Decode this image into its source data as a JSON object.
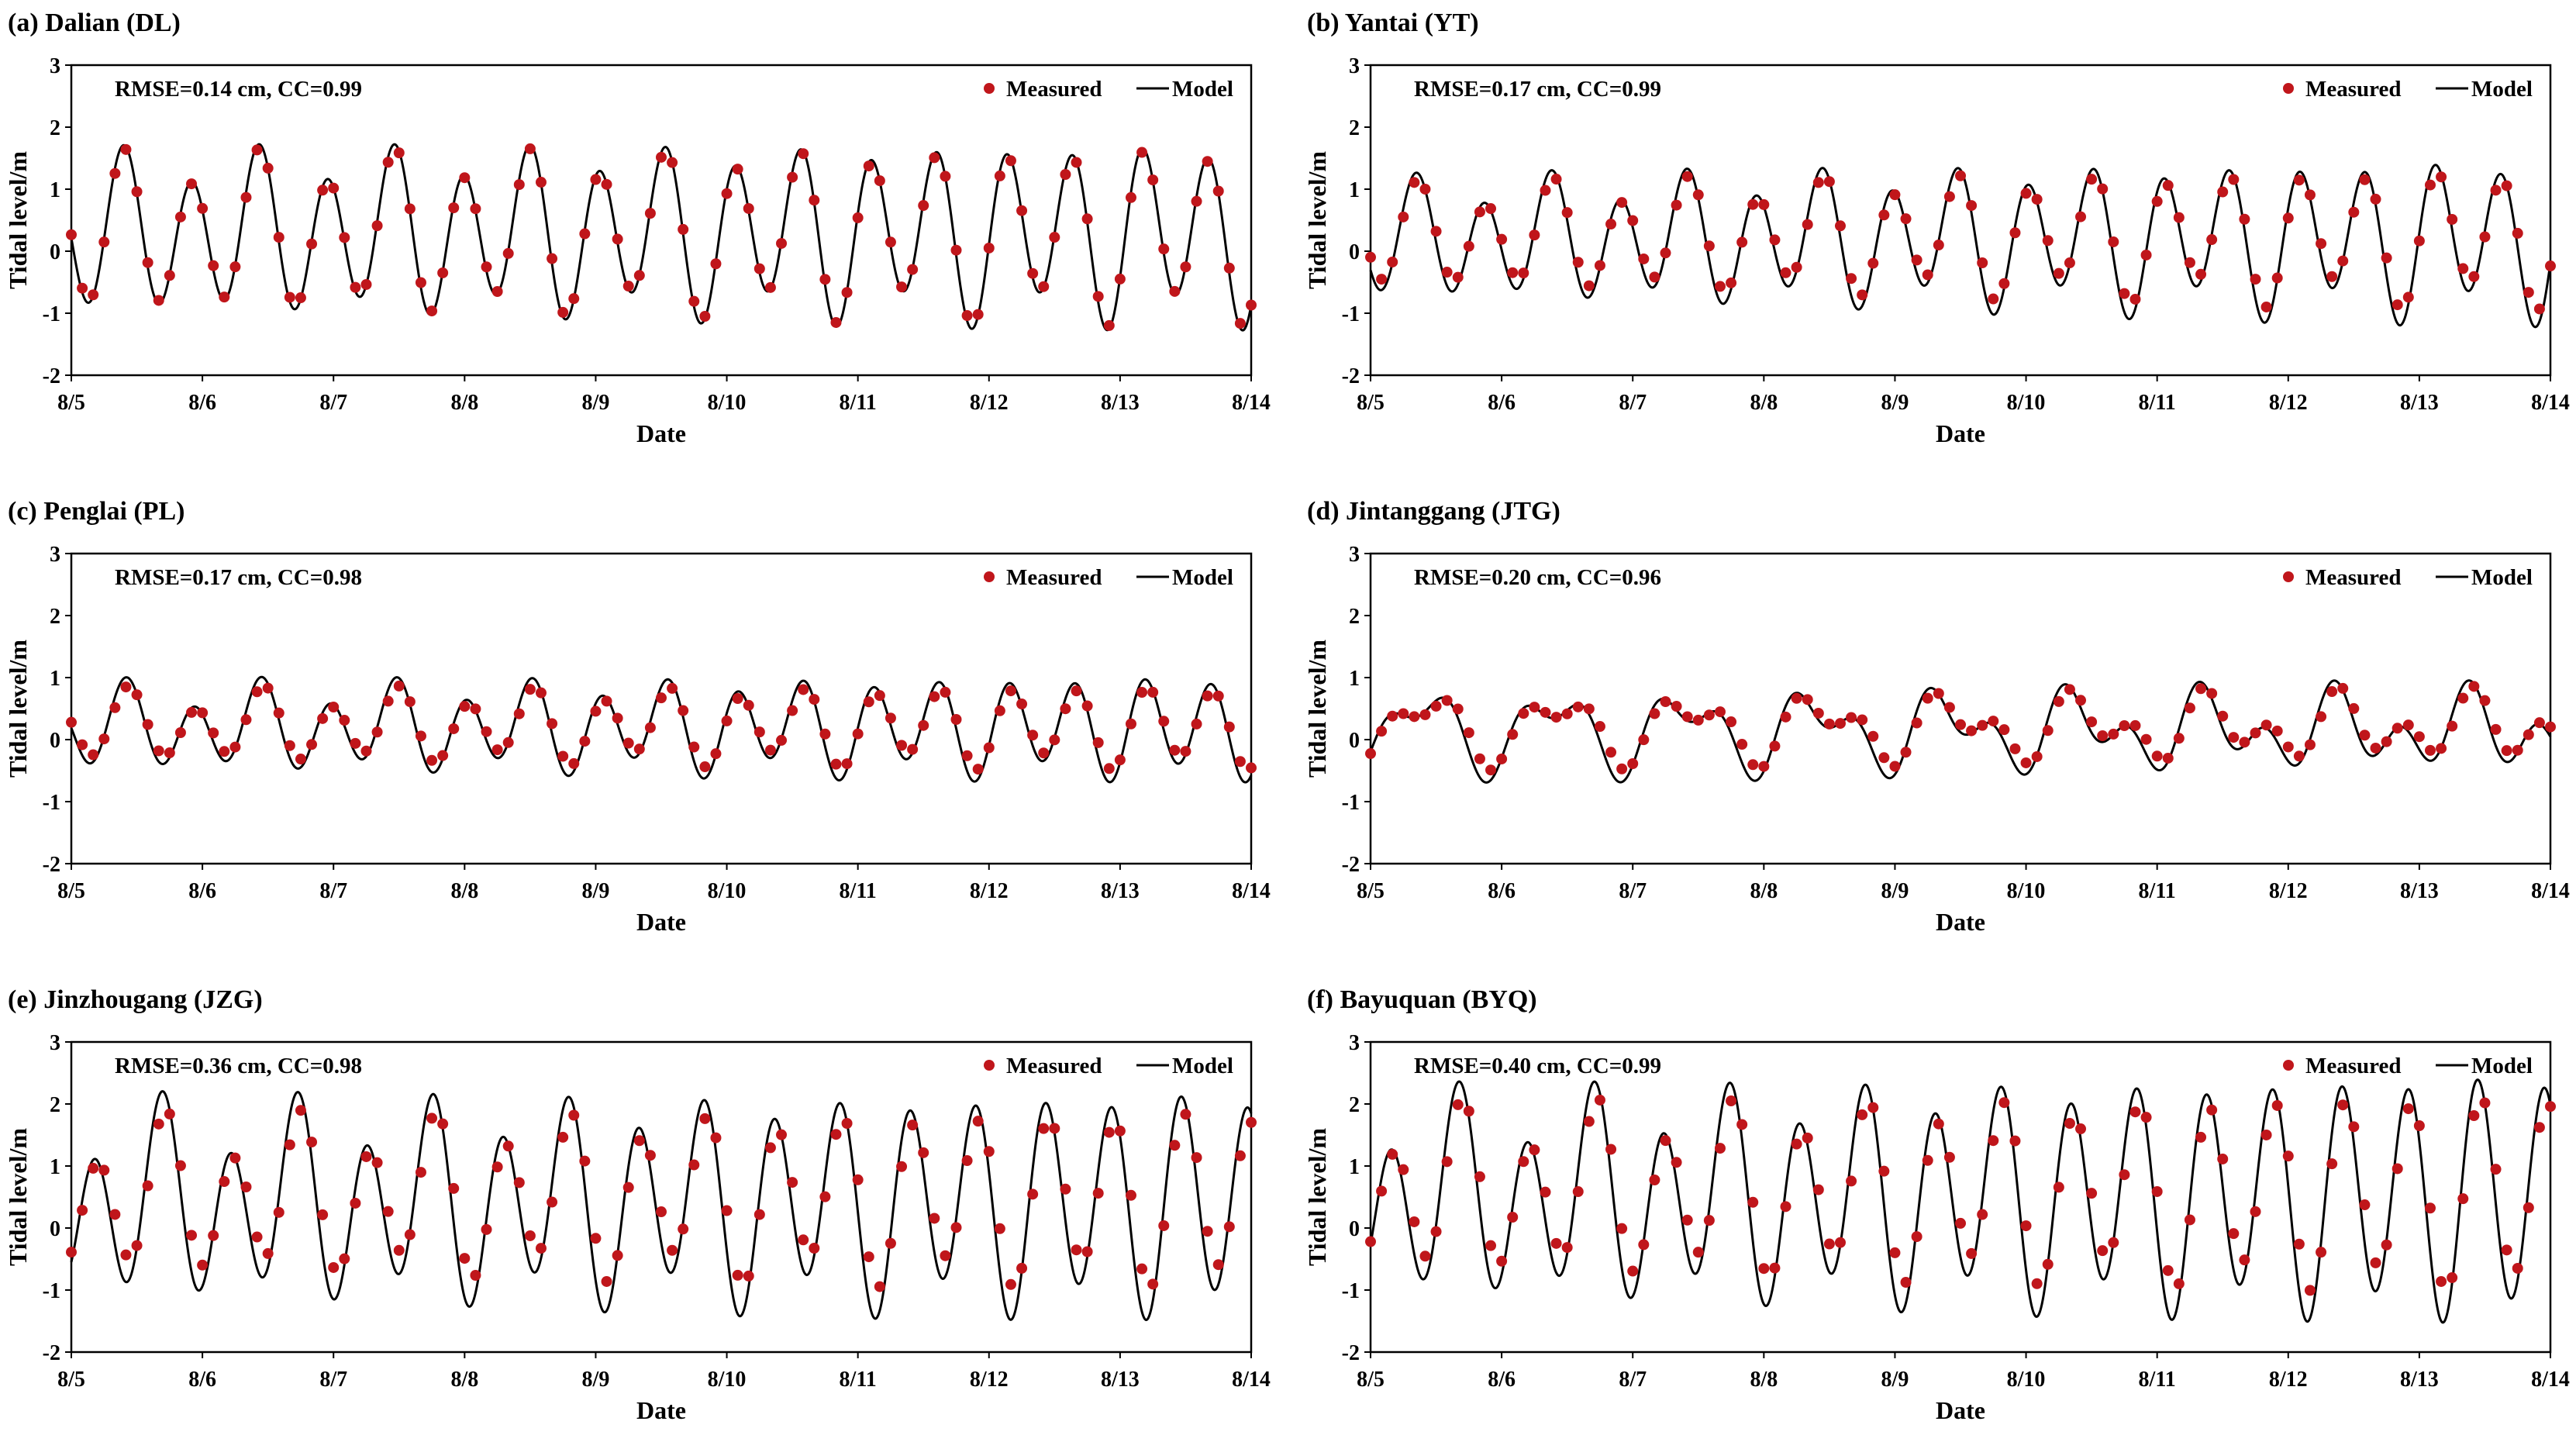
{
  "figure": {
    "colors": {
      "measured": "#c0161b",
      "model": "#000000",
      "axis": "#000000"
    }
  },
  "chart_data": [
    {
      "type": "line",
      "title": "(a) Dalian (DL)",
      "stats": "RMSE=0.14 cm, CC=0.99",
      "xlabel": "Date",
      "ylabel": "Tidal level/m",
      "ylim": [
        -2,
        3
      ],
      "yticks": [
        "-2",
        "-1",
        "0",
        "1",
        "2",
        "3"
      ],
      "xticks": [
        "8/5",
        "8/6",
        "8/7",
        "8/8",
        "8/9",
        "8/10",
        "8/11",
        "8/12",
        "8/13",
        "8/14"
      ],
      "xlim_days": [
        0,
        9
      ],
      "legend": {
        "position": "top-right",
        "measured": "Measured",
        "model": "Model"
      },
      "model": {
        "mean": 0.3,
        "m2_start": 1.1,
        "m2_end": 1.3,
        "k1_start": 0.3,
        "k1_end": 0.3,
        "phase_days": 0.4,
        "k1_phase_days": 0.4
      },
      "measured": {
        "scale": 0.96,
        "offset": 0.0,
        "lag_hours": 0.1,
        "interval_hours": 2
      }
    },
    {
      "type": "line",
      "title": "(b) Yantai (YT)",
      "stats": "RMSE=0.17 cm, CC=0.99",
      "xlabel": "Date",
      "ylabel": "Tidal level/m",
      "ylim": [
        -2,
        3
      ],
      "yticks": [
        "-2",
        "-1",
        "0",
        "1",
        "2",
        "3"
      ],
      "xticks": [
        "8/5",
        "8/6",
        "8/7",
        "8/8",
        "8/9",
        "8/10",
        "8/11",
        "8/12",
        "8/13",
        "8/14"
      ],
      "xlim_days": [
        0,
        9
      ],
      "legend": {
        "position": "top-right",
        "measured": "Measured",
        "model": "Model"
      },
      "model": {
        "mean": 0.2,
        "m2_start": 0.8,
        "m2_end": 1.15,
        "k1_start": 0.25,
        "k1_end": 0.3,
        "phase_days": 0.35,
        "k1_phase_days": 0.35
      },
      "measured": {
        "scale": 0.85,
        "offset": 0.05,
        "lag_hours": 0.3,
        "interval_hours": 2
      }
    },
    {
      "type": "line",
      "title": "(c) Penglai (PL)",
      "stats": "RMSE=0.17 cm, CC=0.98",
      "xlabel": "Date",
      "ylabel": "Tidal level/m",
      "ylim": [
        -2,
        3
      ],
      "yticks": [
        "-2",
        "-1",
        "0",
        "1",
        "2",
        "3"
      ],
      "xticks": [
        "8/5",
        "8/6",
        "8/7",
        "8/8",
        "8/9",
        "8/10",
        "8/11",
        "8/12",
        "8/13",
        "8/14"
      ],
      "xlim_days": [
        0,
        9
      ],
      "legend": {
        "position": "top-right",
        "measured": "Measured",
        "model": "Model"
      },
      "model": {
        "mean": 0.2,
        "m2_start": 0.55,
        "m2_end": 0.75,
        "k1_start": 0.25,
        "k1_end": 0.15,
        "phase_days": 0.42,
        "k1_phase_days": 0.42
      },
      "measured": {
        "scale": 0.8,
        "offset": 0.02,
        "lag_hours": 0.4,
        "interval_hours": 2
      }
    },
    {
      "type": "line",
      "title": "(d) Jintanggang (JTG)",
      "stats": "RMSE=0.20 cm, CC=0.96",
      "xlabel": "Date",
      "ylabel": "Tidal level/m",
      "ylim": [
        -2,
        3
      ],
      "yticks": [
        "-2",
        "-1",
        "0",
        "1",
        "2",
        "3"
      ],
      "xticks": [
        "8/5",
        "8/6",
        "8/7",
        "8/8",
        "8/9",
        "8/10",
        "8/11",
        "8/12",
        "8/13",
        "8/14"
      ],
      "xlim_days": [
        0,
        9
      ],
      "legend": {
        "position": "top-right",
        "measured": "Measured",
        "model": "Model"
      },
      "model": {
        "mean": 0.15,
        "m2_start": 0.3,
        "m2_end": 0.45,
        "k1_start": 0.55,
        "k1_end": 0.35,
        "phase_days": 0.1,
        "k1_phase_days": 0.4
      },
      "measured": {
        "scale": 0.82,
        "offset": 0.05,
        "lag_hours": 0.8,
        "interval_hours": 2
      }
    },
    {
      "type": "line",
      "title": "(e) Jinzhougang (JZG)",
      "stats": "RMSE=0.36 cm, CC=0.98",
      "xlabel": "Date",
      "ylabel": "Tidal level/m",
      "ylim": [
        -2,
        3
      ],
      "yticks": [
        "-2",
        "-1",
        "0",
        "1",
        "2",
        "3"
      ],
      "xticks": [
        "8/5",
        "8/6",
        "8/7",
        "8/8",
        "8/9",
        "8/10",
        "8/11",
        "8/12",
        "8/13",
        "8/14"
      ],
      "xlim_days": [
        0,
        9
      ],
      "legend": {
        "position": "top-right",
        "measured": "Measured",
        "model": "Model"
      },
      "model": {
        "mean": 0.4,
        "m2_start": 1.25,
        "m2_end": 1.65,
        "k1_start": 0.55,
        "k1_end": 0.25,
        "phase_days": 0.18,
        "k1_phase_days": 0.68
      },
      "measured": {
        "scale": 0.78,
        "offset": 0.1,
        "lag_hours": 0.6,
        "interval_hours": 2
      }
    },
    {
      "type": "line",
      "title": "(f) Bayuquan (BYQ)",
      "stats": "RMSE=0.40 cm, CC=0.99",
      "xlabel": "Date",
      "ylabel": "Tidal level/m",
      "ylim": [
        -2,
        3
      ],
      "yticks": [
        "-2",
        "-1",
        "0",
        "1",
        "2",
        "3"
      ],
      "xticks": [
        "8/5",
        "8/6",
        "8/7",
        "8/8",
        "8/9",
        "8/10",
        "8/11",
        "8/12",
        "8/13",
        "8/14"
      ],
      "xlim_days": [
        0,
        9
      ],
      "legend": {
        "position": "top-right",
        "measured": "Measured",
        "model": "Model"
      },
      "model": {
        "mean": 0.5,
        "m2_start": 1.3,
        "m2_end": 1.85,
        "k1_start": 0.55,
        "k1_end": 0.2,
        "phase_days": 0.16,
        "k1_phase_days": 0.66
      },
      "measured": {
        "scale": 0.8,
        "offset": 0.1,
        "lag_hours": 0.6,
        "interval_hours": 2
      }
    }
  ]
}
